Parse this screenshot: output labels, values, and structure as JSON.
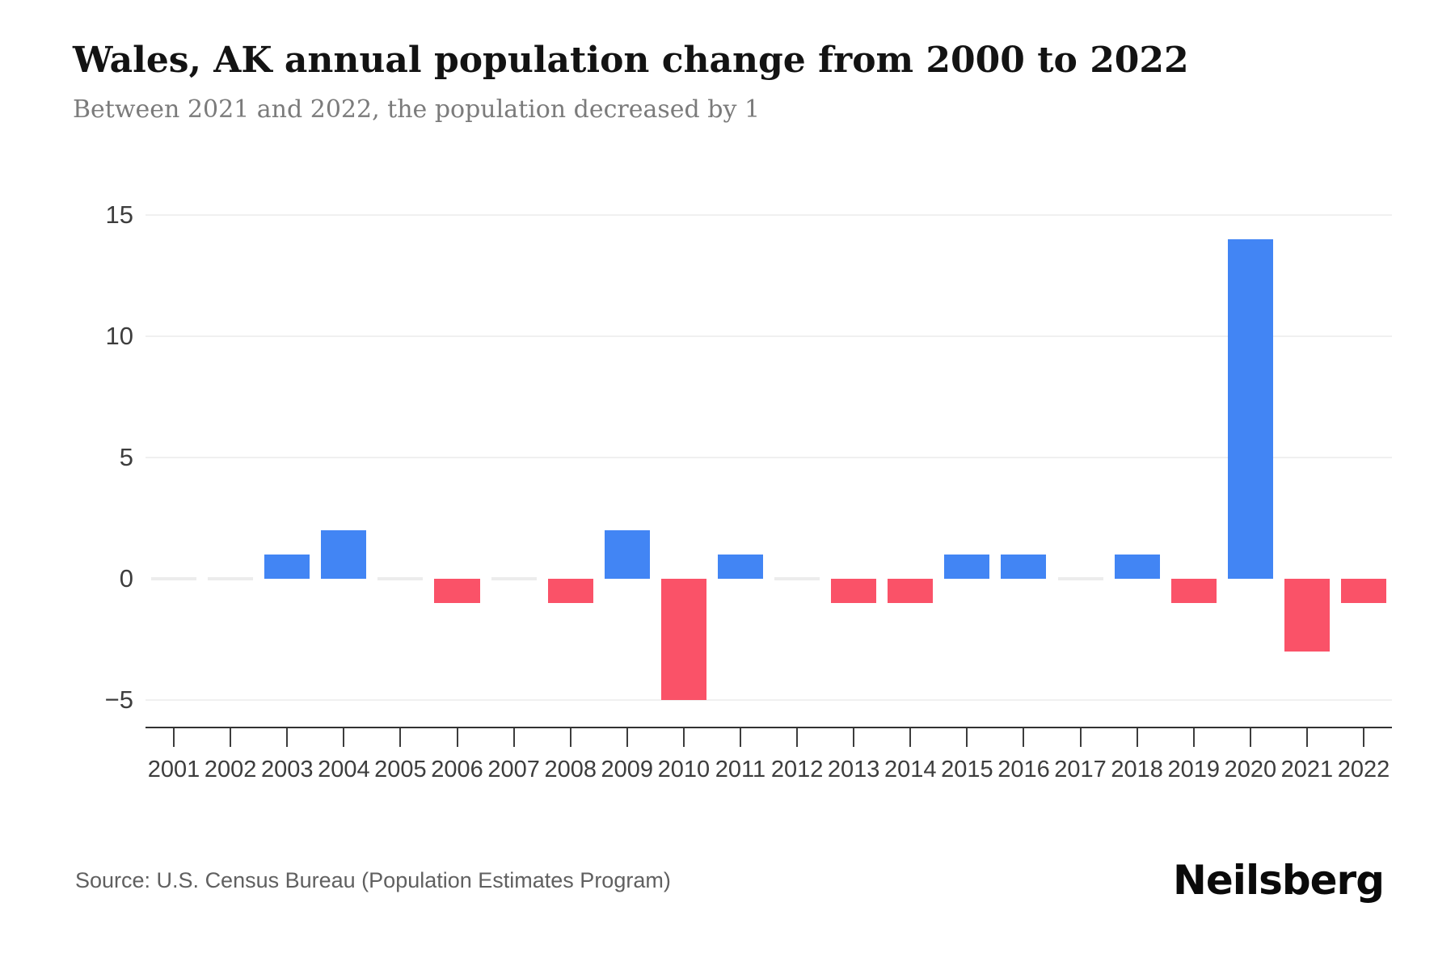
{
  "header": {
    "title": "Wales, AK annual population change from 2000 to 2022",
    "subtitle": "Between 2021 and 2022, the population decreased by 1"
  },
  "chart_data": {
    "type": "bar",
    "title": "Wales, AK annual population change from 2000 to 2022",
    "categories": [
      "2001",
      "2002",
      "2003",
      "2004",
      "2005",
      "2006",
      "2007",
      "2008",
      "2009",
      "2010",
      "2011",
      "2012",
      "2013",
      "2014",
      "2015",
      "2016",
      "2017",
      "2018",
      "2019",
      "2020",
      "2021",
      "2022"
    ],
    "values": [
      0,
      0,
      1,
      2,
      0,
      -1,
      0,
      -1,
      2,
      -5,
      1,
      0,
      -1,
      -1,
      1,
      1,
      0,
      1,
      -1,
      14,
      -3,
      -1
    ],
    "xlabel": "",
    "ylabel": "",
    "ylim": [
      -6.1,
      16.7
    ],
    "yticks": [
      {
        "label": "15",
        "value": 15
      },
      {
        "label": "10",
        "value": 10
      },
      {
        "label": "5",
        "value": 5
      },
      {
        "label": "0",
        "value": 0
      },
      {
        "label": "−5",
        "value": -5
      }
    ],
    "grid": "horizontal-light",
    "legend": "none",
    "colors": {
      "positive_bar": "#4285f4",
      "negative_bar": "#fa5268",
      "zero_bar": "#ececec",
      "gridline": "#f0f0f0",
      "axis": "#333333",
      "tick_label": "#3d3d3d"
    }
  },
  "footer": {
    "source": "Source: U.S. Census Bureau (Population Estimates Program)",
    "logo": "Neilsberg"
  }
}
